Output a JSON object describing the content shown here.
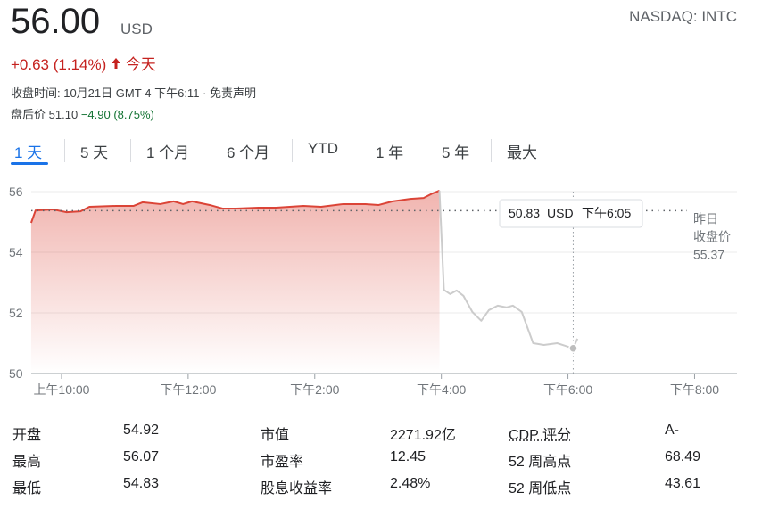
{
  "header": {
    "price": "56.00",
    "currency": "USD",
    "ticker": "NASDAQ: INTC",
    "change": "+0.63 (1.14%)",
    "change_period": "今天",
    "close_time": "收盘时间: 10月21日 GMT-4 下午6:11 · ",
    "disclaimer": "免责声明",
    "after_hours_label": "盘后价",
    "after_hours_price": "51.10",
    "after_hours_change": "−4.90 (8.75%)"
  },
  "tabs": [
    "1 天",
    "5 天",
    "1 个月",
    "6 个月",
    "YTD",
    "1 年",
    "5 年",
    "最大"
  ],
  "chart_data": {
    "type": "line",
    "grid": true,
    "xlim": [
      9.5,
      20.67
    ],
    "xticks": [
      {
        "value": 10,
        "label": "上午10:00"
      },
      {
        "value": 12,
        "label": "下午12:00"
      },
      {
        "value": 14,
        "label": "下午2:00"
      },
      {
        "value": 16,
        "label": "下午4:00"
      },
      {
        "value": 18,
        "label": "下午6:00"
      },
      {
        "value": 20,
        "label": "下午8:00"
      }
    ],
    "ylim": [
      50,
      56
    ],
    "yticks": [
      56,
      54,
      52,
      50
    ],
    "series": [
      {
        "color": "#db4437",
        "fill": true,
        "x": [
          9.52,
          9.59,
          9.87,
          10.08,
          10.3,
          10.44,
          10.86,
          11.14,
          11.28,
          11.56,
          11.77,
          11.92,
          12.06,
          12.34,
          12.55,
          12.76,
          13.11,
          13.39,
          13.82,
          14.1,
          14.45,
          14.8,
          15.01,
          15.23,
          15.51,
          15.72,
          15.86,
          15.97
        ],
        "values": [
          54.97,
          55.38,
          55.41,
          55.32,
          55.35,
          55.5,
          55.53,
          55.53,
          55.65,
          55.59,
          55.68,
          55.59,
          55.68,
          55.56,
          55.44,
          55.44,
          55.47,
          55.47,
          55.53,
          55.5,
          55.59,
          55.59,
          55.56,
          55.68,
          55.76,
          55.79,
          55.94,
          56.03
        ]
      },
      {
        "color": "#cccccc",
        "fill": false,
        "x": [
          15.97,
          16.04,
          16.14,
          16.24,
          16.35,
          16.49,
          16.63,
          16.75,
          16.89,
          17.03,
          17.13,
          17.27,
          17.45,
          17.62,
          17.83,
          18.08,
          18.15
        ],
        "values": [
          56.03,
          52.76,
          52.62,
          52.74,
          52.56,
          52.03,
          51.74,
          52.09,
          52.24,
          52.18,
          52.24,
          52.03,
          51.0,
          50.94,
          51.0,
          50.83,
          51.15
        ]
      }
    ],
    "prev_close": 55.37,
    "prev_close_label": [
      "昨日",
      "收盘价"
    ],
    "tooltip": {
      "x": 18.083,
      "value": 50.83,
      "unit": "USD",
      "time": "下午6:05"
    }
  },
  "stats": {
    "rows": [
      [
        "开盘",
        54.92,
        "市值",
        "2271.92亿",
        "CDP 评分",
        "A-"
      ],
      [
        "最高",
        56.07,
        "市盈率",
        12.45,
        "52 周高点",
        68.49
      ],
      [
        "最低",
        54.83,
        "股息收益率",
        "2.48%",
        "52 周低点",
        43.61
      ]
    ]
  }
}
